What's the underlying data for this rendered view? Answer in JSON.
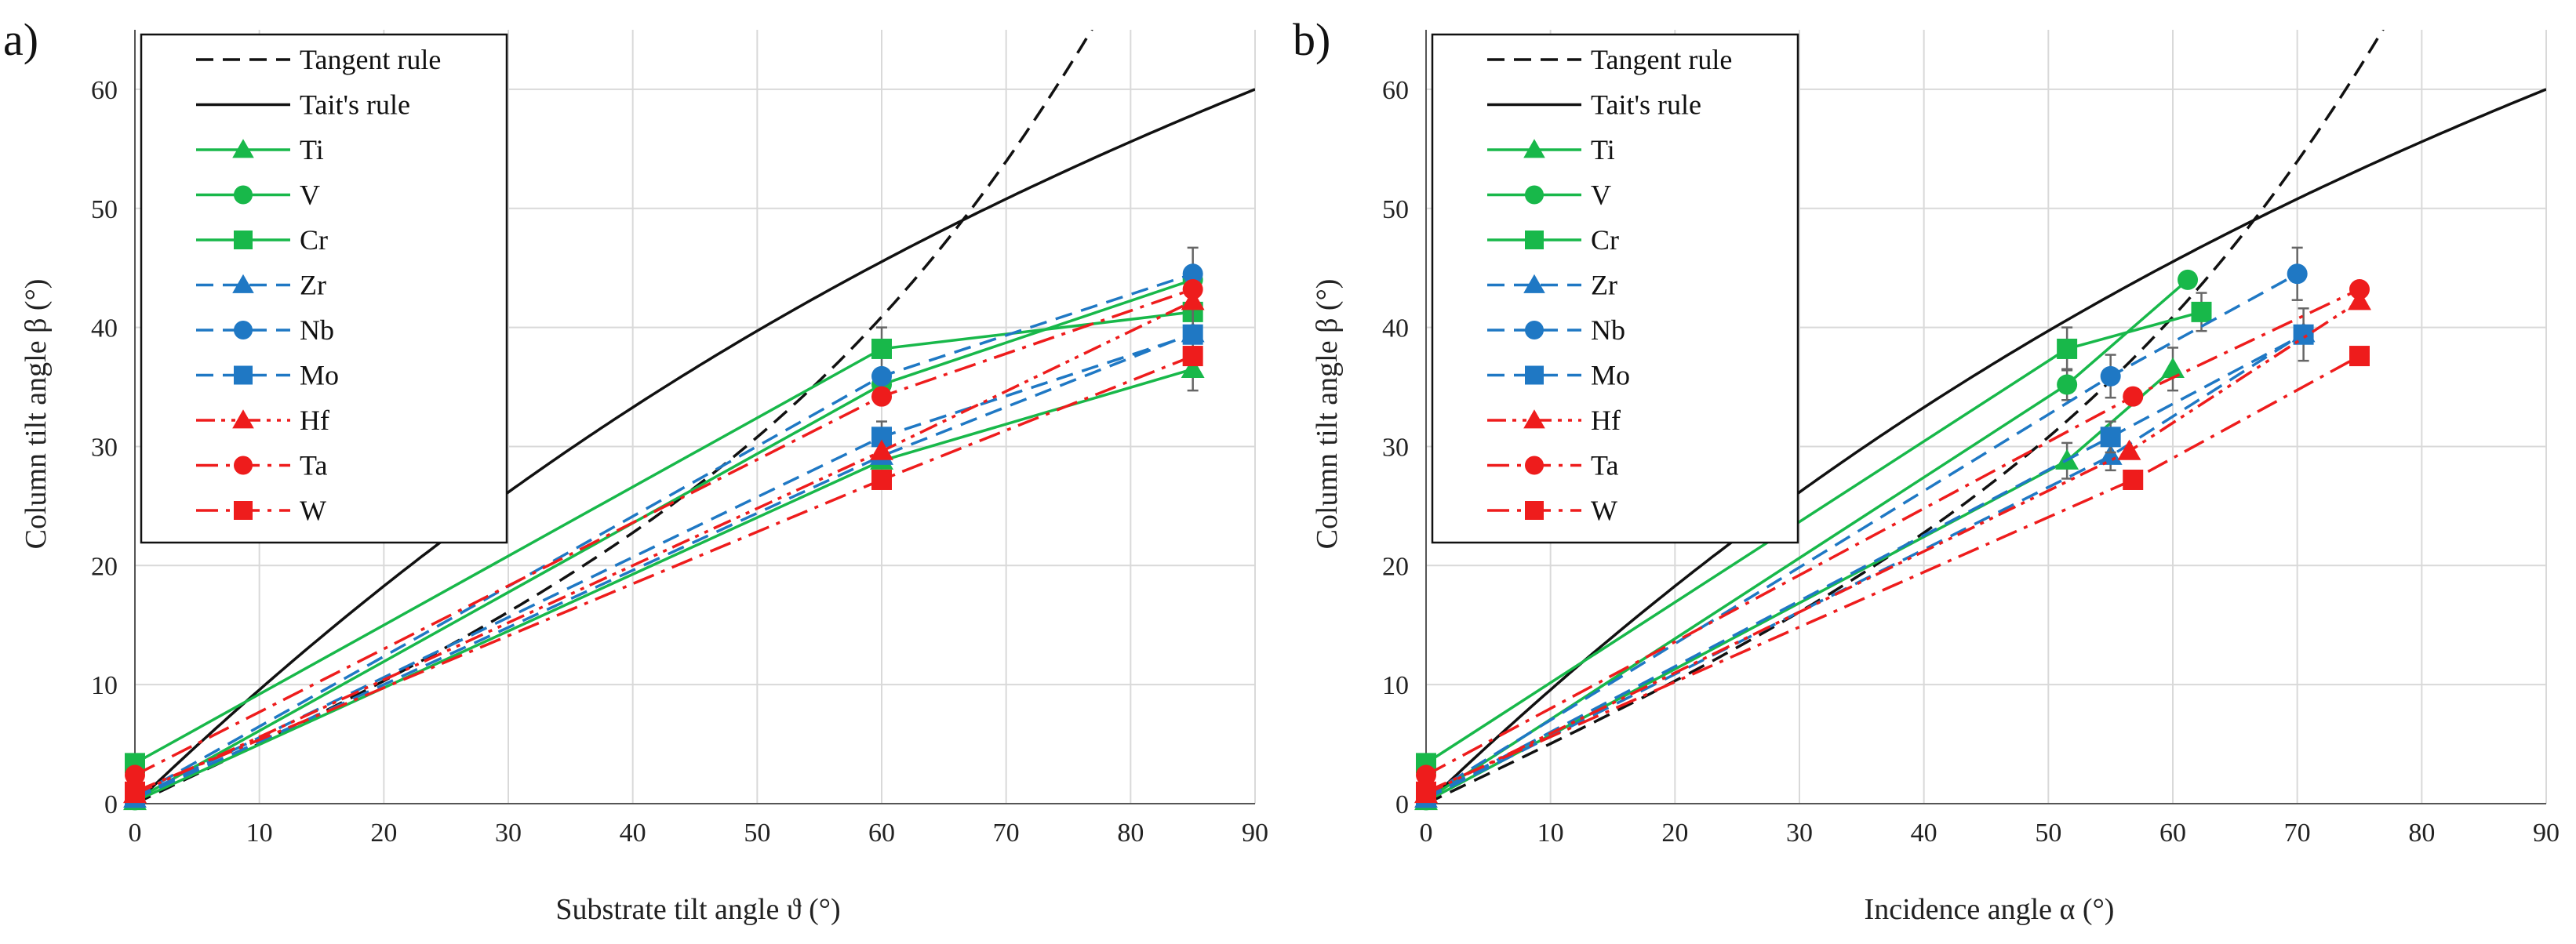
{
  "colors": {
    "green": "#18b84a",
    "blue": "#1f78c4",
    "red": "#ee1c1c",
    "black": "#111111",
    "grid": "#d9d9d9"
  },
  "chart_data": [
    {
      "type": "line",
      "panel": "a)",
      "xlabel": "Substrate tilt angle ϑ (°)",
      "ylabel": "Column tilt angle β (°)",
      "xlim": [
        0,
        90
      ],
      "ylim": [
        0,
        65
      ],
      "xticks": [
        0,
        10,
        20,
        30,
        40,
        50,
        60,
        70,
        80,
        90
      ],
      "yticks": [
        0,
        10,
        20,
        30,
        40,
        50,
        60
      ],
      "grid": true,
      "legend_position": "top-left",
      "series": [
        {
          "name": "Tangent rule",
          "color": "#111111",
          "dash": "dashed",
          "marker": "none",
          "kind": "tangent"
        },
        {
          "name": "Tait's rule",
          "color": "#111111",
          "dash": "solid",
          "marker": "none",
          "kind": "tait"
        },
        {
          "name": "Ti",
          "color": "#18b84a",
          "dash": "solid",
          "marker": "triangle",
          "x": [
            0,
            60,
            85
          ],
          "y": [
            0.2,
            28.8,
            36.5
          ],
          "err": [
            0,
            0,
            1.8
          ]
        },
        {
          "name": "V",
          "color": "#18b84a",
          "dash": "solid",
          "marker": "circle",
          "x": [
            0,
            60,
            85
          ],
          "y": [
            0.3,
            35.2,
            44.0
          ],
          "err": [
            0,
            0,
            0
          ]
        },
        {
          "name": "Cr",
          "color": "#18b84a",
          "dash": "solid",
          "marker": "square",
          "x": [
            0,
            60,
            85
          ],
          "y": [
            3.4,
            38.2,
            41.3
          ],
          "err": [
            0,
            1.8,
            0
          ]
        },
        {
          "name": "Zr",
          "color": "#1f78c4",
          "dash": "dashed",
          "marker": "triangle",
          "x": [
            0,
            60,
            85
          ],
          "y": [
            0.4,
            29.2,
            39.5
          ],
          "err": [
            0,
            0,
            0
          ]
        },
        {
          "name": "Nb",
          "color": "#1f78c4",
          "dash": "dashed",
          "marker": "circle",
          "x": [
            0,
            60,
            85
          ],
          "y": [
            0.6,
            35.9,
            44.5
          ],
          "err": [
            0,
            0,
            2.2
          ]
        },
        {
          "name": "Mo",
          "color": "#1f78c4",
          "dash": "dashed",
          "marker": "square",
          "x": [
            0,
            60,
            85
          ],
          "y": [
            0.5,
            30.8,
            39.4
          ],
          "err": [
            0,
            1.3,
            2.2
          ]
        },
        {
          "name": "Hf",
          "color": "#ee1c1c",
          "dash": "dashdotdot",
          "marker": "triangle",
          "x": [
            0,
            60,
            85
          ],
          "y": [
            0.8,
            29.6,
            42.2
          ],
          "err": [
            0,
            0,
            0
          ]
        },
        {
          "name": "Ta",
          "color": "#ee1c1c",
          "dash": "dashdot",
          "marker": "circle",
          "x": [
            0,
            60,
            85
          ],
          "y": [
            2.4,
            34.2,
            43.2
          ],
          "err": [
            0,
            0,
            0
          ]
        },
        {
          "name": "W",
          "color": "#ee1c1c",
          "dash": "dashdot",
          "marker": "square",
          "x": [
            0,
            60,
            85
          ],
          "y": [
            1.0,
            27.2,
            37.6
          ],
          "err": [
            0,
            0,
            0
          ]
        }
      ]
    },
    {
      "type": "line",
      "panel": "b)",
      "xlabel": "Incidence angle α (°)",
      "ylabel": "Column tilt angle β (°)",
      "xlim": [
        0,
        90
      ],
      "ylim": [
        0,
        65
      ],
      "xticks": [
        0,
        10,
        20,
        30,
        40,
        50,
        60,
        70,
        80,
        90
      ],
      "yticks": [
        0,
        10,
        20,
        30,
        40,
        50,
        60
      ],
      "grid": true,
      "legend_position": "top-left",
      "series": [
        {
          "name": "Tangent rule",
          "color": "#111111",
          "dash": "dashed",
          "marker": "none",
          "kind": "tangent"
        },
        {
          "name": "Tait's rule",
          "color": "#111111",
          "dash": "solid",
          "marker": "none",
          "kind": "tait"
        },
        {
          "name": "Ti",
          "color": "#18b84a",
          "dash": "solid",
          "marker": "triangle",
          "x": [
            0,
            51.5,
            60
          ],
          "y": [
            0.2,
            28.8,
            36.5
          ],
          "err": [
            0,
            1.5,
            1.8
          ]
        },
        {
          "name": "V",
          "color": "#18b84a",
          "dash": "solid",
          "marker": "circle",
          "x": [
            0,
            51.5,
            61.2
          ],
          "y": [
            0.3,
            35.2,
            44.0
          ],
          "err": [
            0,
            1.3,
            0
          ]
        },
        {
          "name": "Cr",
          "color": "#18b84a",
          "dash": "solid",
          "marker": "square",
          "x": [
            0,
            51.5,
            62.3
          ],
          "y": [
            3.4,
            38.2,
            41.3
          ],
          "err": [
            0,
            1.8,
            1.6
          ]
        },
        {
          "name": "Zr",
          "color": "#1f78c4",
          "dash": "dashed",
          "marker": "triangle",
          "x": [
            0,
            55,
            70.5
          ],
          "y": [
            0.4,
            29.2,
            39.5
          ],
          "err": [
            0,
            1.2,
            0
          ]
        },
        {
          "name": "Nb",
          "color": "#1f78c4",
          "dash": "dashed",
          "marker": "circle",
          "x": [
            0,
            55,
            70
          ],
          "y": [
            0.6,
            35.9,
            44.5
          ],
          "err": [
            0,
            1.8,
            2.2
          ]
        },
        {
          "name": "Mo",
          "color": "#1f78c4",
          "dash": "dashed",
          "marker": "square",
          "x": [
            0,
            55,
            70.5
          ],
          "y": [
            0.5,
            30.8,
            39.4
          ],
          "err": [
            0,
            1.3,
            2.2
          ]
        },
        {
          "name": "Hf",
          "color": "#ee1c1c",
          "dash": "dashdotdot",
          "marker": "triangle",
          "x": [
            0,
            56.5,
            75
          ],
          "y": [
            0.8,
            29.6,
            42.2
          ],
          "err": [
            0,
            0,
            0
          ]
        },
        {
          "name": "Ta",
          "color": "#ee1c1c",
          "dash": "dashdot",
          "marker": "circle",
          "x": [
            0,
            56.8,
            75
          ],
          "y": [
            2.4,
            34.2,
            43.2
          ],
          "err": [
            0,
            0,
            0
          ]
        },
        {
          "name": "W",
          "color": "#ee1c1c",
          "dash": "dashdot",
          "marker": "square",
          "x": [
            0,
            56.8,
            75
          ],
          "y": [
            1.0,
            27.2,
            37.6
          ],
          "err": [
            0,
            0,
            0
          ]
        }
      ]
    }
  ]
}
